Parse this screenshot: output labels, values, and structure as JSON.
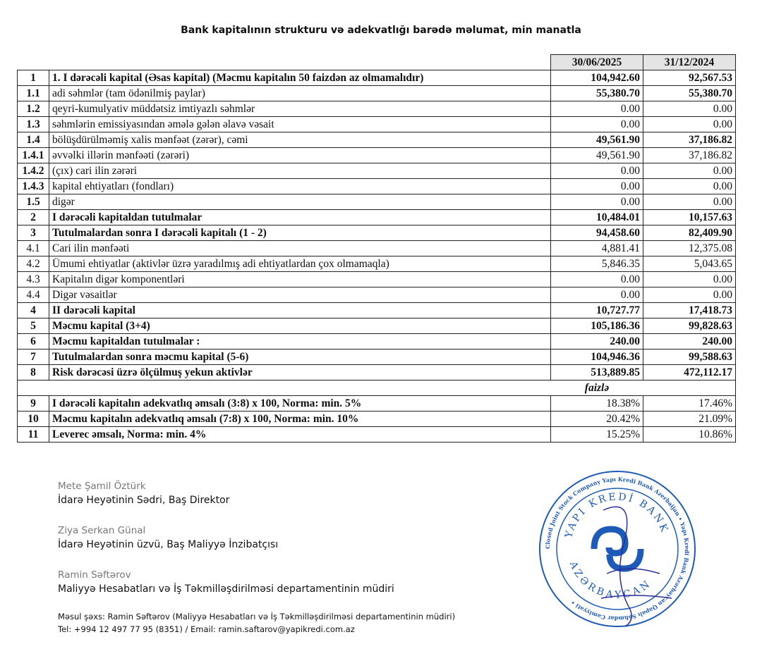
{
  "title": "Bank kapitalının strukturu və adekvatlığı barədə məlumat, min manatla",
  "columns": [
    "30/06/2025",
    "31/12/2024"
  ],
  "rows": [
    {
      "no": "1",
      "label": "1. I dərəcəli kapital (Əsas kapital) (Məcmu kapitalın 50 faizdən  az olmamalıdır)",
      "v1": "104,942.60",
      "v2": "92,567.53",
      "bold_label": true,
      "bold_no": false,
      "bold_val": true
    },
    {
      "no": "1.1",
      "label": "adi səhmlər (tam ödənilmiş paylar)",
      "v1": "55,380.70",
      "v2": "55,380.70",
      "bold_label": false,
      "bold_no": true,
      "bold_val": true
    },
    {
      "no": "1.2",
      "label": "qeyri-kumulyativ müddətsiz imtiyazlı səhmlər",
      "v1": "0.00",
      "v2": "0.00",
      "bold_no": true
    },
    {
      "no": "1.3",
      "label": "səhmlərin emissiyasından əmələ gələn  əlavə vəsait",
      "v1": "0.00",
      "v2": "0.00",
      "bold_no": true
    },
    {
      "no": "1.4",
      "label": "bölüşdürülməmiş xalis mənfəət (zərər), cəmi",
      "v1": "49,561.90",
      "v2": "37,186.82",
      "bold_no": true,
      "bold_val": true
    },
    {
      "no": "1.4.1",
      "label": "əvvəlki illərin mənfəəti (zərəri)",
      "v1": "49,561.90",
      "v2": "37,186.82",
      "bold_no": true
    },
    {
      "no": "1.4.2",
      "label": "(çıx) cari ilin zərəri",
      "v1": "0.00",
      "v2": "0.00",
      "bold_no": true
    },
    {
      "no": "1.4.3",
      "label": "kapital ehtiyatları (fondları)",
      "v1": "0.00",
      "v2": "0.00",
      "bold_no": true
    },
    {
      "no": "1.5",
      "label": "digər",
      "v1": "0.00",
      "v2": "0.00",
      "bold_no": true
    },
    {
      "no": "2",
      "label": "I dərəcəli kapitaldan  tutulmalar",
      "v1": "10,484.01",
      "v2": "10,157.63",
      "bold_label": true,
      "bold_val": true
    },
    {
      "no": "3",
      "label": "Tutulmalardan  sonra I dərəcəli kapitalı (1 - 2)",
      "v1": "94,458.60",
      "v2": "82,409.90",
      "bold_label": true,
      "bold_val": true
    },
    {
      "no": "4.1",
      "label": "Cari ilin mənfəəti",
      "v1": "4,881.41",
      "v2": "12,375.08"
    },
    {
      "no": "4.2",
      "label": "Ümumi ehtiyatlar (aktivlər üzrə yaradılmış adi ehtiyatlardan çox olmamaqla)",
      "v1": "5,846.35",
      "v2": "5,043.65"
    },
    {
      "no": "4.3",
      "label": "Kapitalın digər komponentləri",
      "v1": "0.00",
      "v2": "0.00"
    },
    {
      "no": "4.4",
      "label": "Digər vəsaitlər",
      "v1": "0.00",
      "v2": "0.00"
    },
    {
      "no": "4",
      "label": "II dərəcəli  kapital",
      "v1": "10,727.77",
      "v2": "17,418.73",
      "bold_label": true,
      "bold_val": true
    },
    {
      "no": "5",
      "label": "Məcmu kapital (3+4)",
      "v1": "105,186.36",
      "v2": "99,828.63",
      "bold_label": true,
      "bold_val": true
    },
    {
      "no": "6",
      "label": "Məcmu kapitaldan tutulmalar :",
      "v1": "240.00",
      "v2": "240.00",
      "bold_label": true,
      "bold_val": true
    },
    {
      "no": "7",
      "label": "Tutulmalardan sonra məcmu kapital (5-6)",
      "v1": "104,946.36",
      "v2": "99,588.63",
      "bold_label": true,
      "bold_val": true
    },
    {
      "no": "8",
      "label": "Risk dərəcəsi üzrə ölçülmuş  yekun aktivlər",
      "v1": "513,889.85",
      "v2": "472,112.17",
      "bold_label": true,
      "bold_val": true
    }
  ],
  "percent_label": "faizlə",
  "ratios": [
    {
      "no": "9",
      "label": "I dərəcəli  kapitalın  adekvatlıq əmsalı (3:8) x 100, Norma: min. 5%",
      "v1": "18.38%",
      "v2": "17.46%"
    },
    {
      "no": "10",
      "label": "Məcmu kapitalın  adekvatlıq  əmsalı (7:8) x 100, Norma: min. 10%",
      "v1": "20.42%",
      "v2": "21.09%"
    },
    {
      "no": "11",
      "label": "Leverec əmsalı, Norma: min. 4%",
      "v1": "15.25%",
      "v2": "10.86%"
    }
  ],
  "signatories": [
    {
      "name": "Mete Şamil Öztürk",
      "position": "İdarə Heyətinin Sədri, Baş Direktor"
    },
    {
      "name": "Ziya Serkan Günal",
      "position": "İdarə Heyətinin üzvü, Baş Maliyyə İnzibatçısı"
    },
    {
      "name": "Ramin Səftərov",
      "position": "Maliyyə Hesabatları və İş Təkmilləşdirilməsi departamentinin müdiri"
    }
  ],
  "contact": {
    "line1": "Məsul şəxs: Ramin Səftərov (Maliyyə Hesabatları və İş Təkmilləşdirilməsi departamentinin müdiri)",
    "line2": "Tel: +994 12 497 77 95 (8351) / Email: ramin.saftarov@yapikredi.com.az"
  },
  "stamp": {
    "text_outer": "Closed Joint Stock Company Yapı Kredi Bank Azerbaijan • Yapı Kredi Bank Azərbaycan Qapalı Səhmdar Cəmiyyəti •",
    "text_top": "YAPI KREDİ BANK",
    "text_bottom": "AZƏRBAYCAN",
    "color": "#1e5bb8"
  },
  "signature_color": "#2a2f9a"
}
